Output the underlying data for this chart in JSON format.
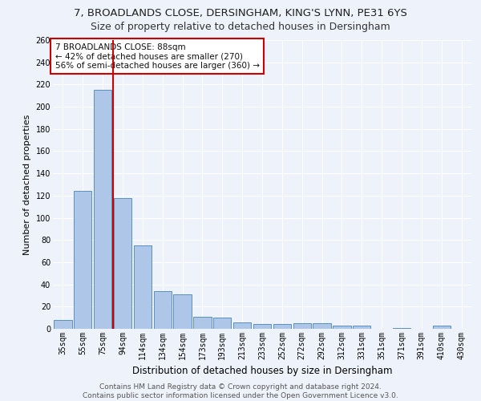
{
  "title_line1": "7, BROADLANDS CLOSE, DERSINGHAM, KING'S LYNN, PE31 6YS",
  "title_line2": "Size of property relative to detached houses in Dersingham",
  "xlabel": "Distribution of detached houses by size in Dersingham",
  "ylabel": "Number of detached properties",
  "categories": [
    "35sqm",
    "55sqm",
    "75sqm",
    "94sqm",
    "114sqm",
    "134sqm",
    "154sqm",
    "173sqm",
    "193sqm",
    "213sqm",
    "233sqm",
    "252sqm",
    "272sqm",
    "292sqm",
    "312sqm",
    "331sqm",
    "351sqm",
    "371sqm",
    "391sqm",
    "410sqm",
    "430sqm"
  ],
  "values": [
    8,
    124,
    215,
    118,
    75,
    34,
    31,
    11,
    10,
    6,
    4,
    4,
    5,
    5,
    3,
    3,
    0,
    1,
    0,
    3,
    0
  ],
  "bar_color": "#aec6e8",
  "bar_edge_color": "#5a8fc0",
  "vline_x": 2.5,
  "vline_color": "#cc0000",
  "annotation_text": "7 BROADLANDS CLOSE: 88sqm\n← 42% of detached houses are smaller (270)\n56% of semi-detached houses are larger (360) →",
  "annotation_box_color": "#ffffff",
  "annotation_box_edge": "#cc0000",
  "ylim": [
    0,
    260
  ],
  "yticks": [
    0,
    20,
    40,
    60,
    80,
    100,
    120,
    140,
    160,
    180,
    200,
    220,
    240,
    260
  ],
  "footer1": "Contains HM Land Registry data © Crown copyright and database right 2024.",
  "footer2": "Contains public sector information licensed under the Open Government Licence v3.0.",
  "bg_color": "#eef2fa",
  "grid_color": "#ffffff",
  "title_fontsize": 9.5,
  "subtitle_fontsize": 9,
  "tick_fontsize": 7,
  "ylabel_fontsize": 8,
  "xlabel_fontsize": 8.5,
  "footer_fontsize": 6.5,
  "annot_fontsize": 7.5
}
